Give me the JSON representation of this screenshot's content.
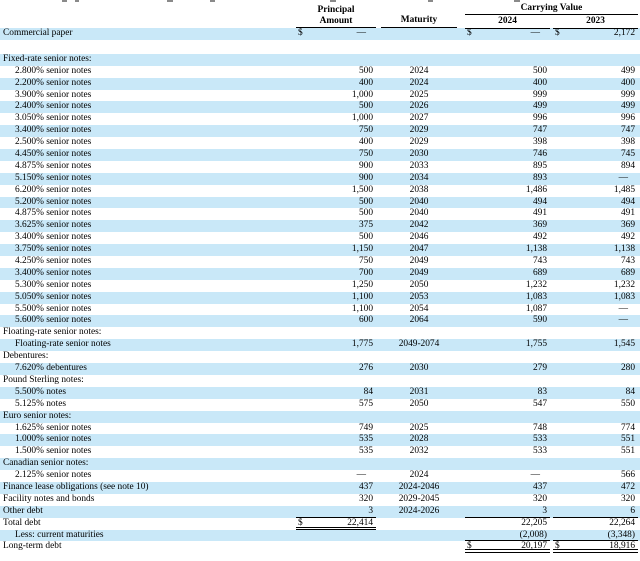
{
  "document": {
    "currency_symbol": "$",
    "colors": {
      "row_highlight": "#C9E8F8",
      "rule": "#000000",
      "text": "#000000"
    },
    "columns": {
      "principal_line1": "Principal",
      "principal_line2": "Amount",
      "maturity": "Maturity",
      "carrying_value": "Carrying Value",
      "year1": "2024",
      "year2": "2023"
    },
    "rows": [
      {
        "label": "Commercial paper",
        "indent": 0,
        "shade": true,
        "p": "—",
        "p$": true,
        "m": "",
        "y24": "—",
        "y24$": true,
        "y23": "2,172",
        "y23$": true
      },
      {
        "spacer": true
      },
      {
        "label": "Fixed-rate senior notes:",
        "indent": 0,
        "shade": true,
        "section": true
      },
      {
        "label": "2.800% senior notes",
        "indent": 1,
        "shade": false,
        "p": "500",
        "m": "2024",
        "y24": "500",
        "y23": "499"
      },
      {
        "label": "2.200% senior notes",
        "indent": 1,
        "shade": true,
        "p": "400",
        "m": "2024",
        "y24": "400",
        "y23": "400"
      },
      {
        "label": "3.900% senior notes",
        "indent": 1,
        "shade": false,
        "p": "1,000",
        "m": "2025",
        "y24": "999",
        "y23": "999"
      },
      {
        "label": "2.400% senior notes",
        "indent": 1,
        "shade": true,
        "p": "500",
        "m": "2026",
        "y24": "499",
        "y23": "499"
      },
      {
        "label": "3.050% senior notes",
        "indent": 1,
        "shade": false,
        "p": "1,000",
        "m": "2027",
        "y24": "996",
        "y23": "996"
      },
      {
        "label": "3.400% senior notes",
        "indent": 1,
        "shade": true,
        "p": "750",
        "m": "2029",
        "y24": "747",
        "y23": "747"
      },
      {
        "label": "2.500% senior notes",
        "indent": 1,
        "shade": false,
        "p": "400",
        "m": "2029",
        "y24": "398",
        "y23": "398"
      },
      {
        "label": "4.450% senior notes",
        "indent": 1,
        "shade": true,
        "p": "750",
        "m": "2030",
        "y24": "746",
        "y23": "745"
      },
      {
        "label": "4.875% senior notes",
        "indent": 1,
        "shade": false,
        "p": "900",
        "m": "2033",
        "y24": "895",
        "y23": "894"
      },
      {
        "label": "5.150% senior notes",
        "indent": 1,
        "shade": true,
        "p": "900",
        "m": "2034",
        "y24": "893",
        "y23": "—"
      },
      {
        "label": "6.200% senior notes",
        "indent": 1,
        "shade": false,
        "p": "1,500",
        "m": "2038",
        "y24": "1,486",
        "y23": "1,485"
      },
      {
        "label": "5.200% senior notes",
        "indent": 1,
        "shade": true,
        "p": "500",
        "m": "2040",
        "y24": "494",
        "y23": "494"
      },
      {
        "label": "4.875% senior notes",
        "indent": 1,
        "shade": false,
        "p": "500",
        "m": "2040",
        "y24": "491",
        "y23": "491"
      },
      {
        "label": "3.625% senior notes",
        "indent": 1,
        "shade": true,
        "p": "375",
        "m": "2042",
        "y24": "369",
        "y23": "369"
      },
      {
        "label": "3.400% senior notes",
        "indent": 1,
        "shade": false,
        "p": "500",
        "m": "2046",
        "y24": "492",
        "y23": "492"
      },
      {
        "label": "3.750% senior notes",
        "indent": 1,
        "shade": true,
        "p": "1,150",
        "m": "2047",
        "y24": "1,138",
        "y23": "1,138"
      },
      {
        "label": "4.250% senior notes",
        "indent": 1,
        "shade": false,
        "p": "750",
        "m": "2049",
        "y24": "743",
        "y23": "743"
      },
      {
        "label": "3.400% senior notes",
        "indent": 1,
        "shade": true,
        "p": "700",
        "m": "2049",
        "y24": "689",
        "y23": "689"
      },
      {
        "label": "5.300% senior notes",
        "indent": 1,
        "shade": false,
        "p": "1,250",
        "m": "2050",
        "y24": "1,232",
        "y23": "1,232"
      },
      {
        "label": "5.050% senior notes",
        "indent": 1,
        "shade": true,
        "p": "1,100",
        "m": "2053",
        "y24": "1,083",
        "y23": "1,083"
      },
      {
        "label": "5.500% senior notes",
        "indent": 1,
        "shade": false,
        "p": "1,100",
        "m": "2054",
        "y24": "1,087",
        "y23": "—"
      },
      {
        "label": "5.600% senior notes",
        "indent": 1,
        "shade": true,
        "p": "600",
        "m": "2064",
        "y24": "590",
        "y23": "—"
      },
      {
        "label": "Floating-rate senior notes:",
        "indent": 0,
        "shade": false,
        "section": true
      },
      {
        "label": "Floating-rate senior notes",
        "indent": 1,
        "shade": true,
        "p": "1,775",
        "m": "2049-2074",
        "y24": "1,755",
        "y23": "1,545"
      },
      {
        "label": "Debentures:",
        "indent": 0,
        "shade": false,
        "section": true
      },
      {
        "label": "7.620% debentures",
        "indent": 1,
        "shade": true,
        "p": "276",
        "m": "2030",
        "y24": "279",
        "y23": "280"
      },
      {
        "label": "Pound Sterling notes:",
        "indent": 0,
        "shade": false,
        "section": true
      },
      {
        "label": "5.500% notes",
        "indent": 1,
        "shade": true,
        "p": "84",
        "m": "2031",
        "y24": "83",
        "y23": "84"
      },
      {
        "label": "5.125% notes",
        "indent": 1,
        "shade": false,
        "p": "575",
        "m": "2050",
        "y24": "547",
        "y23": "550"
      },
      {
        "label": "Euro senior notes:",
        "indent": 0,
        "shade": true,
        "section": true
      },
      {
        "label": "1.625% senior notes",
        "indent": 1,
        "shade": false,
        "p": "749",
        "m": "2025",
        "y24": "748",
        "y23": "774"
      },
      {
        "label": "1.000% senior notes",
        "indent": 1,
        "shade": true,
        "p": "535",
        "m": "2028",
        "y24": "533",
        "y23": "551"
      },
      {
        "label": "1.500% senior notes",
        "indent": 1,
        "shade": false,
        "p": "535",
        "m": "2032",
        "y24": "533",
        "y23": "551"
      },
      {
        "label": "Canadian senior notes:",
        "indent": 0,
        "shade": true,
        "section": true
      },
      {
        "label": "2.125% senior notes",
        "indent": 1,
        "shade": false,
        "p": "—",
        "m": "2024",
        "y24": "—",
        "y23": "566"
      },
      {
        "label": "Finance lease obligations (see note 10)",
        "indent": 0,
        "shade": true,
        "p": "437",
        "m": "2024-2046",
        "y24": "437",
        "y23": "472"
      },
      {
        "label": "Facility notes and bonds",
        "indent": 0,
        "shade": false,
        "p": "320",
        "m": "2029-2045",
        "y24": "320",
        "y23": "320"
      },
      {
        "label": "Other debt",
        "indent": 0,
        "shade": true,
        "p": "3",
        "m": "2024-2026",
        "y24": "3",
        "y23": "6",
        "rule_p": "single",
        "rule_y": "single"
      },
      {
        "label": "Total debt",
        "indent": 0,
        "shade": false,
        "p": "22,414",
        "p$": true,
        "m": "",
        "y24": "22,205",
        "y23": "22,264",
        "rule_p": "double"
      },
      {
        "label": "Less: current maturities",
        "indent": 1,
        "shade": true,
        "p": "",
        "m": "",
        "y24": "(2,008)",
        "y23": "(3,348)",
        "rule_y": "single"
      },
      {
        "label": "Long-term debt",
        "indent": 0,
        "shade": false,
        "p": "",
        "m": "",
        "y24": "20,197",
        "y24$": true,
        "y23": "18,916",
        "y23$": true,
        "rule_y": "thick"
      }
    ]
  }
}
